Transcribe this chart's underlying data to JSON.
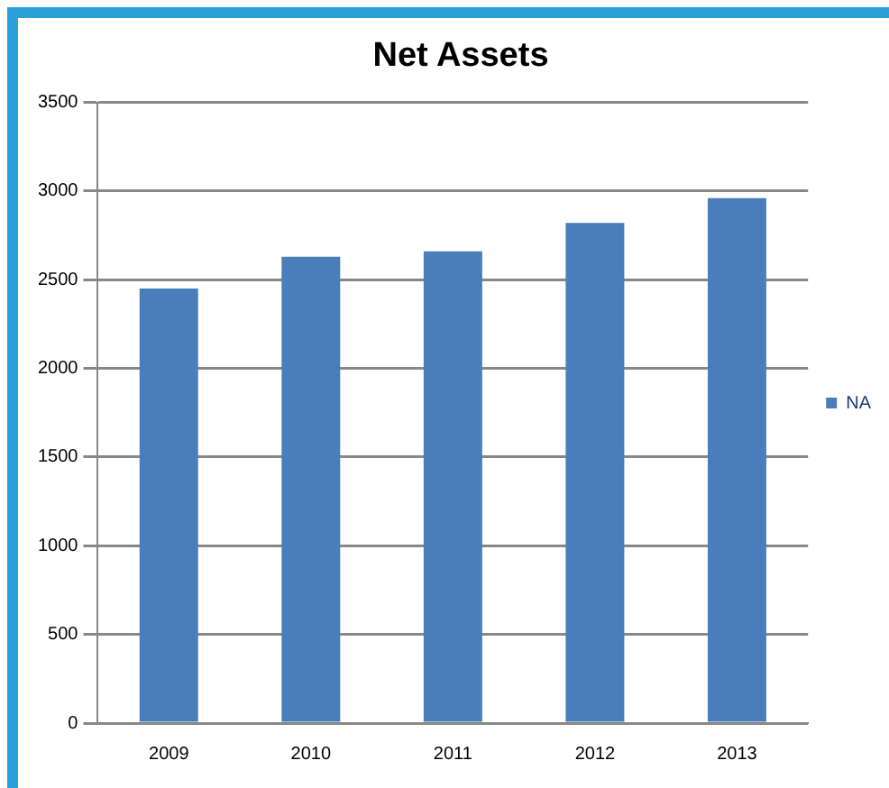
{
  "chart_data": {
    "type": "bar",
    "title": "Net Assets",
    "categories": [
      "2009",
      "2010",
      "2011",
      "2012",
      "2013"
    ],
    "series": [
      {
        "name": "NA",
        "color": "#4a7ebb",
        "values": [
          2450,
          2630,
          2660,
          2820,
          2960
        ]
      }
    ],
    "ylim": [
      0,
      3500
    ],
    "yticks": [
      0,
      500,
      1000,
      1500,
      2000,
      2500,
      3000,
      3500
    ],
    "grid": "y",
    "legend": "right"
  }
}
